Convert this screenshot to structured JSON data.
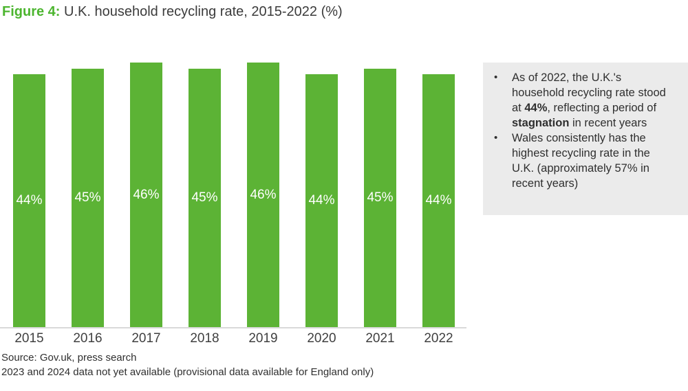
{
  "title": {
    "prefix": "Figure 4:",
    "text": " U.K. household recycling rate, 2015-2022 (%)"
  },
  "chart_data": {
    "type": "bar",
    "title": "U.K. household recycling rate, 2015-2022 (%)",
    "categories": [
      "2015",
      "2016",
      "2017",
      "2018",
      "2019",
      "2020",
      "2021",
      "2022"
    ],
    "values": [
      44,
      45,
      46,
      45,
      46,
      44,
      45,
      44
    ],
    "value_labels": [
      "44%",
      "45%",
      "46%",
      "45%",
      "46%",
      "44%",
      "45%",
      "44%"
    ],
    "xlabel": "",
    "ylabel": "",
    "ylim": [
      0,
      47
    ],
    "grid": false,
    "legend": false,
    "value_label_position": "inside-middle"
  },
  "sidebar": {
    "bullets": [
      {
        "segments": [
          {
            "text": "As of 2022, the U.K.'s household recycling rate stood at ",
            "bold": false
          },
          {
            "text": "44%",
            "bold": true
          },
          {
            "text": ", reflecting a period of ",
            "bold": false
          },
          {
            "text": "stagnation",
            "bold": true
          },
          {
            "text": " in recent years",
            "bold": false
          }
        ]
      },
      {
        "segments": [
          {
            "text": "Wales consistently has the highest recycling rate in the U.K. (approximately 57% in recent years)",
            "bold": false
          }
        ]
      }
    ]
  },
  "footer": {
    "line1": "Source: Gov.uk, press search",
    "line2": "2023 and 2024 data not yet available (provisional data available for England only)"
  },
  "colors": {
    "accent_green": "#4cb52f",
    "bar_green": "#5cb335",
    "axis_line": "#d9d9d9",
    "sidebar_background": "#ebebeb",
    "text_dark": "#3b3b3b",
    "bar_value_text": "#ffffff"
  }
}
